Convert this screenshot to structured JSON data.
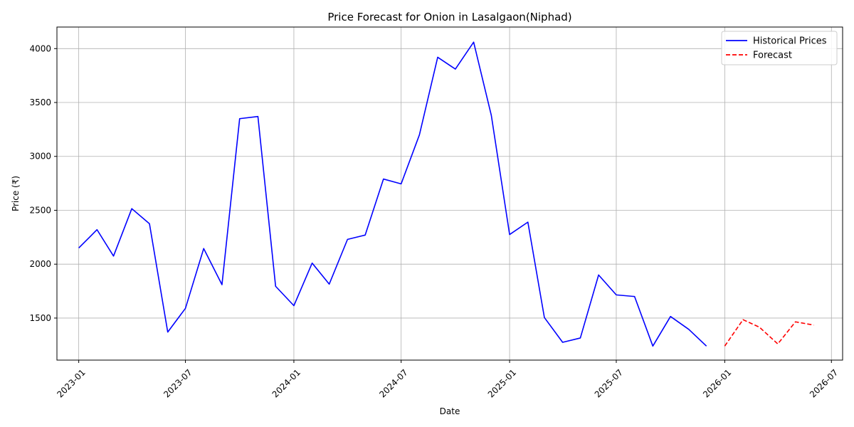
{
  "chart_data": {
    "type": "line",
    "title": "Price Forecast for Onion in Lasalgaon(Niphad)",
    "xlabel": "Date",
    "ylabel": "Price (₹)",
    "xlim": [
      "2022-11-25",
      "2026-07-20"
    ],
    "ylim": [
      1110,
      4200
    ],
    "x_ticks": [
      "2023-01",
      "2023-07",
      "2024-01",
      "2024-07",
      "2025-01",
      "2025-07",
      "2026-01",
      "2026-07"
    ],
    "y_ticks": [
      1500,
      2000,
      2500,
      3000,
      3500,
      4000
    ],
    "grid": true,
    "legend_position": "top-right",
    "series": [
      {
        "name": "Historical Prices",
        "color": "#0000ff",
        "style": "solid",
        "x": [
          "2023-01",
          "2023-02",
          "2023-03",
          "2023-04",
          "2023-05",
          "2023-06",
          "2023-07",
          "2023-08",
          "2023-09",
          "2023-10",
          "2023-11",
          "2023-12",
          "2024-01",
          "2024-02",
          "2024-03",
          "2024-04",
          "2024-05",
          "2024-06",
          "2024-07",
          "2024-08",
          "2024-09",
          "2024-10",
          "2024-11",
          "2024-12",
          "2025-01",
          "2025-02",
          "2025-03",
          "2025-04",
          "2025-05",
          "2025-06",
          "2025-07",
          "2025-08",
          "2025-09",
          "2025-10",
          "2025-11",
          "2025-12"
        ],
        "values": [
          2150,
          2320,
          2075,
          2515,
          2375,
          1370,
          1590,
          2145,
          1810,
          3350,
          3370,
          1795,
          1615,
          2010,
          1815,
          2230,
          2270,
          2790,
          2745,
          3200,
          3920,
          3810,
          4060,
          3380,
          2275,
          2390,
          1505,
          1275,
          1315,
          1900,
          1715,
          1700,
          1240,
          1515,
          1395,
          1240
        ]
      },
      {
        "name": "Forecast",
        "color": "#ff0000",
        "style": "dashed",
        "x": [
          "2026-01",
          "2026-02",
          "2026-03",
          "2026-04",
          "2026-05",
          "2026-06"
        ],
        "values": [
          1240,
          1485,
          1415,
          1260,
          1465,
          1435
        ]
      }
    ]
  }
}
